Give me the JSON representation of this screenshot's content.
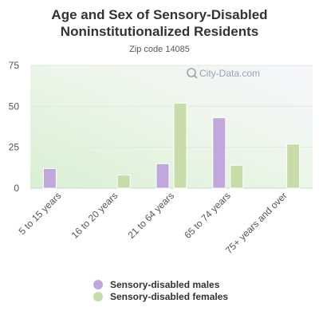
{
  "chart_data": {
    "type": "bar",
    "title_lines": [
      "Age and Sex of Sensory-Disabled",
      "Noninstitutionalized Residents"
    ],
    "subtitle": "Zip code 14085",
    "categories": [
      "5 to 15 years",
      "16 to 20 years",
      "21 to 64 years",
      "65 to 74 years",
      "75+ years and over"
    ],
    "series": [
      {
        "name": "Sensory-disabled males",
        "color": "#c0a8dc",
        "values": [
          12,
          0,
          15,
          43,
          0
        ]
      },
      {
        "name": "Sensory-disabled females",
        "color": "#c8dcaa",
        "values": [
          0,
          8,
          52,
          14,
          27
        ]
      }
    ],
    "ylim": [
      0,
      75
    ],
    "yticks": [
      0,
      25,
      50,
      75
    ],
    "grid": true,
    "legend_position": "bottom"
  },
  "watermark": "City-Data.com",
  "watermark_icon": "search-icon"
}
